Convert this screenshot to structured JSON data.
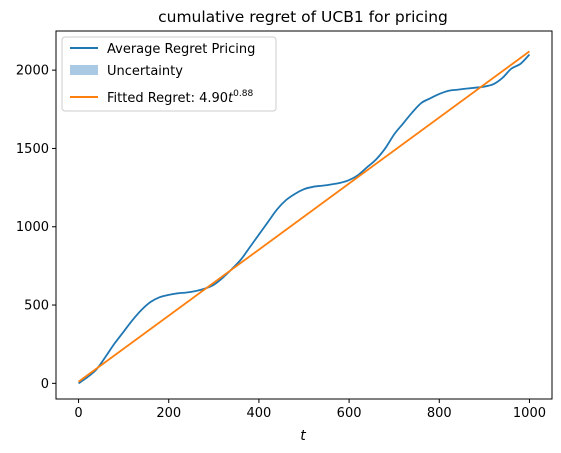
{
  "chart_data": {
    "type": "line",
    "title": "cumulative regret of UCB1 for pricing",
    "xlabel": "t",
    "ylabel": "",
    "xlim": [
      -50,
      1050
    ],
    "ylim": [
      -100,
      2250
    ],
    "xticks": [
      0,
      200,
      400,
      600,
      800,
      1000
    ],
    "yticks": [
      0,
      500,
      1000,
      1500,
      2000
    ],
    "grid": false,
    "legend_position": "top-left",
    "colors": {
      "average": "#1f77b4",
      "uncertainty": "#a9c9e4",
      "fitted": "#ff7f0e"
    },
    "series": [
      {
        "name": "Average Regret Pricing",
        "x": [
          0,
          20,
          40,
          60,
          80,
          100,
          120,
          140,
          160,
          180,
          200,
          220,
          240,
          260,
          280,
          300,
          320,
          340,
          360,
          380,
          400,
          420,
          440,
          460,
          480,
          500,
          520,
          540,
          560,
          580,
          600,
          620,
          640,
          660,
          680,
          700,
          720,
          740,
          760,
          780,
          800,
          820,
          840,
          860,
          880,
          900,
          920,
          940,
          960,
          980,
          1000
        ],
        "values": [
          0,
          40,
          90,
          170,
          255,
          330,
          405,
          470,
          520,
          550,
          565,
          575,
          580,
          590,
          605,
          630,
          675,
          730,
          790,
          870,
          950,
          1030,
          1110,
          1170,
          1210,
          1240,
          1255,
          1262,
          1270,
          1280,
          1298,
          1330,
          1380,
          1430,
          1500,
          1590,
          1660,
          1730,
          1790,
          1820,
          1848,
          1868,
          1875,
          1882,
          1888,
          1895,
          1910,
          1950,
          2010,
          2040,
          2100
        ]
      },
      {
        "name": "Uncertainty",
        "x": [],
        "values": []
      },
      {
        "name": "Fitted Regret: 4.90t^0.88",
        "x": [
          0,
          1000
        ],
        "values": [
          10,
          2120
        ]
      }
    ]
  },
  "legend": {
    "items": [
      {
        "label": "Average Regret Pricing",
        "kind": "line",
        "color": "#1f77b4"
      },
      {
        "label": "Uncertainty",
        "kind": "patch",
        "color": "#a9c9e4"
      },
      {
        "label_prefix": "Fitted Regret: 4.90",
        "label_var": "t",
        "label_exp": "0.88",
        "kind": "line",
        "color": "#ff7f0e"
      }
    ]
  }
}
